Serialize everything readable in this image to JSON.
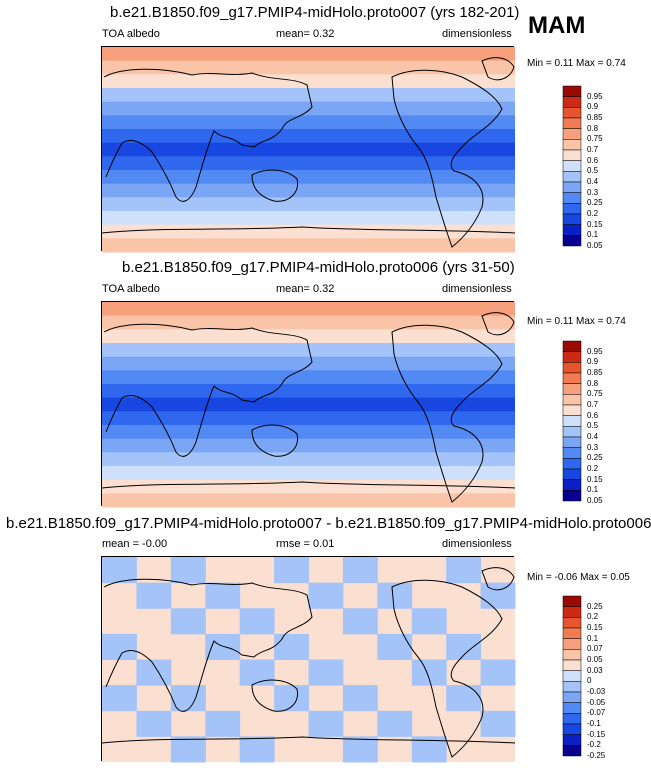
{
  "season": "MAM",
  "panels": [
    {
      "title": "b.e21.B1850.f09_g17.PMIP4-midHolo.proto007 (yrs 182-201)",
      "left_label": "TOA albedo",
      "center_label": "mean=  0.32",
      "right_label": "dimensionless",
      "minmax": "Min =  0.11 Max =  0.74",
      "colorbar": [
        "0.95",
        "0.9",
        "0.85",
        "0.8",
        "0.75",
        "0.7",
        "0.6",
        "0.5",
        "0.4",
        "0.3",
        "0.25",
        "0.2",
        "0.15",
        "0.1",
        "0.05"
      ]
    },
    {
      "title": "b.e21.B1850.f09_g17.PMIP4-midHolo.proto006 (yrs 31-50)",
      "left_label": "TOA albedo",
      "center_label": "mean=  0.32",
      "right_label": "dimensionless",
      "minmax": "Min =  0.11 Max =  0.74",
      "colorbar": [
        "0.95",
        "0.9",
        "0.85",
        "0.8",
        "0.75",
        "0.7",
        "0.6",
        "0.5",
        "0.4",
        "0.3",
        "0.25",
        "0.2",
        "0.15",
        "0.1",
        "0.05"
      ]
    },
    {
      "title": "b.e21.B1850.f09_g17.PMIP4-midHolo.proto007 - b.e21.B1850.f09_g17.PMIP4-midHolo.proto006",
      "left_label": "mean =  -0.00",
      "center_label": "rmse =  0.01",
      "right_label": "dimensionless",
      "minmax": "Min = -0.06 Max =  0.05",
      "colorbar": [
        "0.25",
        "0.2",
        "0.15",
        "0.1",
        "0.07",
        "0.05",
        "0.03",
        "0",
        "-0.03",
        "-0.05",
        "-0.07",
        "-0.1",
        "-0.15",
        "-0.2",
        "-0.25"
      ]
    }
  ],
  "chart_data": [
    {
      "type": "heatmap",
      "variable": "TOA albedo",
      "units": "dimensionless",
      "mean": 0.32,
      "min": 0.11,
      "max": 0.74,
      "levels": [
        0.05,
        0.1,
        0.15,
        0.2,
        0.25,
        0.3,
        0.4,
        0.5,
        0.6,
        0.7,
        0.75,
        0.8,
        0.85,
        0.9,
        0.95
      ]
    },
    {
      "type": "heatmap",
      "variable": "TOA albedo",
      "units": "dimensionless",
      "mean": 0.32,
      "min": 0.11,
      "max": 0.74,
      "levels": [
        0.05,
        0.1,
        0.15,
        0.2,
        0.25,
        0.3,
        0.4,
        0.5,
        0.6,
        0.7,
        0.75,
        0.8,
        0.85,
        0.9,
        0.95
      ]
    },
    {
      "type": "heatmap",
      "units": "dimensionless",
      "mean": -0.0,
      "rmse": 0.01,
      "min": -0.06,
      "max": 0.05,
      "levels": [
        -0.25,
        -0.2,
        -0.15,
        -0.1,
        -0.07,
        -0.05,
        -0.03,
        0,
        0.03,
        0.05,
        0.07,
        0.1,
        0.15,
        0.2,
        0.25
      ]
    }
  ],
  "colors": {
    "scale": [
      "#08008f",
      "#0a1fc4",
      "#1846e0",
      "#2f68ee",
      "#5289f2",
      "#7aa6f5",
      "#a4c3f8",
      "#cfe0fb",
      "#fbe0d2",
      "#f9c4a8",
      "#f6a07e",
      "#f27b54",
      "#e8542e",
      "#cc2a14",
      "#990a05"
    ]
  }
}
